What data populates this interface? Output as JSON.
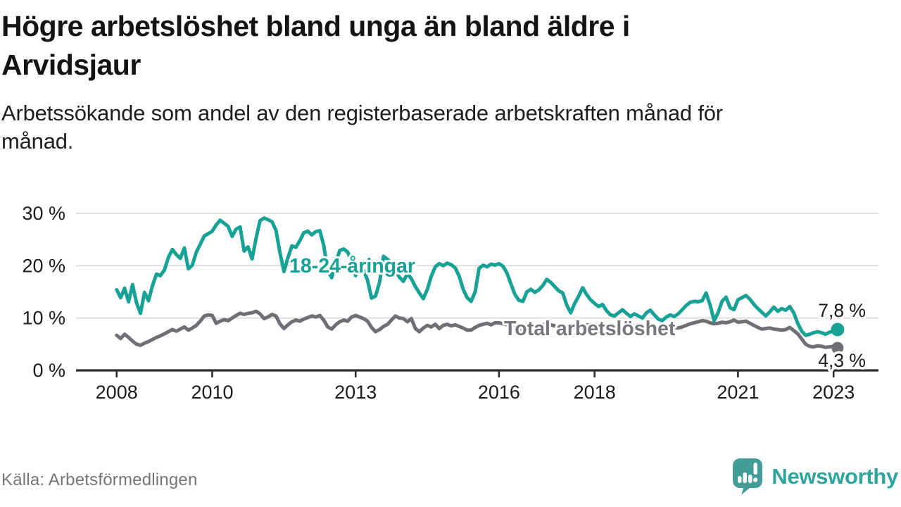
{
  "header": {
    "title": "Högre arbetslöshet bland unga än bland äldre i\nArvidsjaur",
    "subtitle": "Arbetssökande som andel av den registerbaserade arbetskraften månad för\nmånad."
  },
  "footer": {
    "source": "Källa: Arbetsförmedlingen",
    "brand": "Newsworthy"
  },
  "colors": {
    "young_line": "#17a295",
    "total_line": "#6e6e74",
    "total_label": "#76767c",
    "end_label": "#1c1c1c",
    "grid": "#d8d8d8",
    "axis": "#2d2d2d",
    "tick_label": "#1c1c1c",
    "logo_bubble": "#419d95",
    "logo_text": "#2ea49c"
  },
  "chart_data": {
    "type": "line",
    "unit": "%",
    "x_start": {
      "year": 2008,
      "month": 1
    },
    "x_end": {
      "year": 2023,
      "month": 2
    },
    "x_ticks": [
      2008,
      2010,
      2013,
      2016,
      2018,
      2021,
      2023
    ],
    "y_ticks": [
      0,
      10,
      20,
      30
    ],
    "y_tick_suffix": " %",
    "ylim": [
      0,
      31
    ],
    "grid": true,
    "legend_position": "inline",
    "series": [
      {
        "name": "18-24-åringar",
        "color": "#17a295",
        "end_label": "7,8 %",
        "end_value": 7.8,
        "values": [
          15.4,
          13.9,
          15.7,
          13.1,
          16.4,
          12.9,
          10.9,
          14.9,
          13.3,
          16.2,
          18.4,
          18.1,
          19.2,
          21.6,
          23.1,
          22.1,
          21.4,
          23.4,
          19.4,
          20.1,
          22.6,
          24.1,
          25.7,
          26.1,
          26.6,
          27.8,
          28.7,
          28.1,
          27.5,
          25.6,
          27.0,
          27.4,
          22.8,
          23.6,
          21.3,
          25.2,
          28.6,
          29.1,
          28.8,
          28.4,
          26.8,
          22.5,
          18.9,
          21.5,
          23.8,
          23.5,
          24.8,
          26.3,
          26.6,
          25.9,
          26.5,
          26.7,
          23.9,
          19.0,
          17.7,
          20.5,
          22.9,
          23.2,
          22.6,
          20.9,
          18.1,
          20.0,
          19.2,
          17.2,
          13.8,
          14.2,
          16.8,
          21.8,
          21.2,
          20.6,
          19.2,
          17.8,
          17.0,
          18.5,
          17.5,
          16.0,
          14.8,
          13.7,
          15.5,
          18.0,
          19.8,
          20.4,
          20.0,
          20.5,
          20.2,
          19.6,
          18.0,
          15.5,
          13.9,
          13.2,
          15.0,
          19.5,
          20.1,
          19.8,
          20.3,
          20.1,
          20.4,
          19.9,
          18.6,
          16.5,
          14.5,
          13.4,
          13.2,
          15.0,
          15.5,
          14.9,
          15.4,
          16.2,
          17.4,
          16.8,
          16.0,
          15.2,
          14.8,
          12.5,
          11.0,
          12.8,
          14.2,
          15.8,
          14.5,
          13.5,
          12.8,
          12.2,
          12.6,
          11.4,
          10.6,
          10.4,
          11.0,
          11.6,
          10.9,
          10.3,
          10.8,
          10.4,
          10.0,
          11.0,
          11.5,
          10.6,
          9.8,
          9.5,
          10.2,
          10.6,
          10.3,
          10.8,
          11.6,
          12.4,
          13.0,
          13.2,
          13.1,
          13.3,
          14.8,
          12.5,
          9.5,
          11.0,
          13.2,
          14.0,
          12.0,
          11.6,
          13.5,
          13.9,
          14.3,
          13.6,
          12.6,
          11.8,
          11.1,
          10.4,
          11.2,
          12.1,
          11.3,
          11.8,
          11.5,
          12.2,
          11.0,
          9.0,
          7.5,
          6.7,
          6.9,
          7.2,
          7.4,
          7.2,
          6.9,
          7.3,
          7.5,
          7.8
        ]
      },
      {
        "name": "Total arbetslöshet",
        "color": "#6e6e74",
        "end_label": "4,3 %",
        "end_value": 4.3,
        "values": [
          6.7,
          6.1,
          6.9,
          6.3,
          5.6,
          5.0,
          4.8,
          5.2,
          5.5,
          5.9,
          6.3,
          6.6,
          7.0,
          7.4,
          7.8,
          7.5,
          7.9,
          8.3,
          7.7,
          8.1,
          8.6,
          9.4,
          10.4,
          10.6,
          10.5,
          9.0,
          9.4,
          9.7,
          9.5,
          10.0,
          10.5,
          10.9,
          10.7,
          10.9,
          11.0,
          11.3,
          10.8,
          9.9,
          10.2,
          10.7,
          10.4,
          8.9,
          8.0,
          8.7,
          9.3,
          9.6,
          9.4,
          9.8,
          10.1,
          10.4,
          10.2,
          10.5,
          9.6,
          8.3,
          7.9,
          8.7,
          9.3,
          9.6,
          9.4,
          10.2,
          10.5,
          10.2,
          9.9,
          9.4,
          8.2,
          7.4,
          7.8,
          8.4,
          8.8,
          9.6,
          10.4,
          10.0,
          9.9,
          9.3,
          9.9,
          8.0,
          7.4,
          8.1,
          8.6,
          8.3,
          8.8,
          8.0,
          8.6,
          8.8,
          8.5,
          8.7,
          8.4,
          8.1,
          7.7,
          7.7,
          8.2,
          8.6,
          8.8,
          9.0,
          8.7,
          9.1,
          9.1,
          8.9,
          8.7,
          8.4,
          8.0,
          7.7,
          8.1,
          8.5,
          8.7,
          8.6,
          8.8,
          8.7,
          8.9,
          8.7,
          8.5,
          8.2,
          7.8,
          7.5,
          7.9,
          8.3,
          8.6,
          8.5,
          8.7,
          8.6,
          8.8,
          8.6,
          8.4,
          8.1,
          7.8,
          7.6,
          7.9,
          8.2,
          8.4,
          8.3,
          8.5,
          8.4,
          8.5,
          8.3,
          8.1,
          7.9,
          7.6,
          7.4,
          7.7,
          8.0,
          8.2,
          8.1,
          8.3,
          8.6,
          8.9,
          9.1,
          9.3,
          9.5,
          9.4,
          9.1,
          8.9,
          9.0,
          9.2,
          9.1,
          9.3,
          9.6,
          9.2,
          9.3,
          9.4,
          9.0,
          8.6,
          8.2,
          7.9,
          8.0,
          8.1,
          7.9,
          7.8,
          7.7,
          7.8,
          8.2,
          7.6,
          7.0,
          6.0,
          5.0,
          4.6,
          4.5,
          4.7,
          4.6,
          4.4,
          4.5,
          4.6,
          4.3
        ]
      }
    ]
  }
}
